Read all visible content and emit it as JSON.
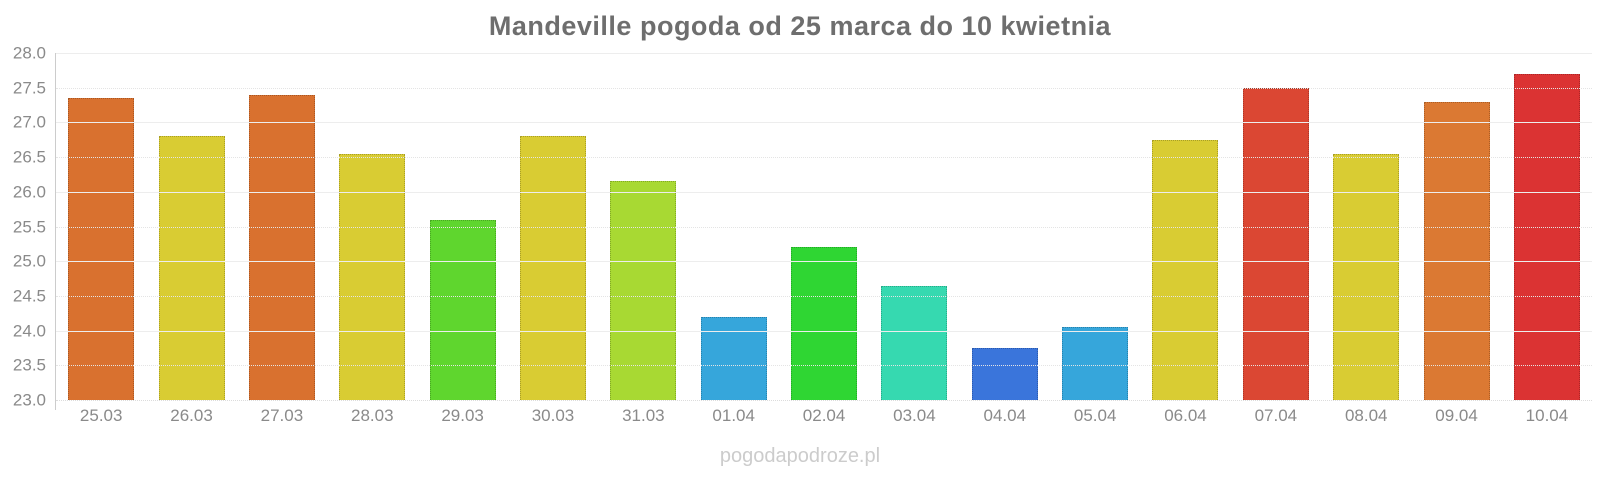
{
  "title": "Mandeville pogoda od 25 marca do 10 kwietnia",
  "watermark": "pogodapodroze.pl",
  "chart_data": {
    "type": "bar",
    "title": "Mandeville pogoda od 25 marca do 10 kwietnia",
    "xlabel": "",
    "ylabel": "",
    "ylim": [
      23.0,
      28.0
    ],
    "ytick_step": 0.5,
    "yticks": [
      "28.0",
      "27.5",
      "27.0",
      "26.5",
      "26.0",
      "25.5",
      "25.0",
      "24.5",
      "24.0",
      "23.5",
      "23.0"
    ],
    "grid": true,
    "legend": "none",
    "categories": [
      "25.03",
      "26.03",
      "27.03",
      "28.03",
      "29.03",
      "30.03",
      "31.03",
      "01.04",
      "02.04",
      "03.04",
      "04.04",
      "05.04",
      "06.04",
      "07.04",
      "08.04",
      "09.04",
      "10.04"
    ],
    "values": [
      27.35,
      26.8,
      27.4,
      26.55,
      25.6,
      26.8,
      26.15,
      24.2,
      25.2,
      24.65,
      23.75,
      24.05,
      26.75,
      27.5,
      26.55,
      27.3,
      27.7
    ],
    "colors": [
      "#d9712f",
      "#d9cc33",
      "#d9712f",
      "#d9cc33",
      "#5fd62e",
      "#d9cc33",
      "#a8d933",
      "#36a6db",
      "#2fd633",
      "#36d9b0",
      "#3a75db",
      "#36a6db",
      "#d9cc33",
      "#db4733",
      "#d9cc33",
      "#db7933",
      "#db3333"
    ],
    "bar_border_style": "dotted",
    "axis_color": "#cccccc",
    "tick_label_color": "#8a8a8a",
    "title_color": "#6e6e6e",
    "watermark_color": "#cccccc"
  }
}
